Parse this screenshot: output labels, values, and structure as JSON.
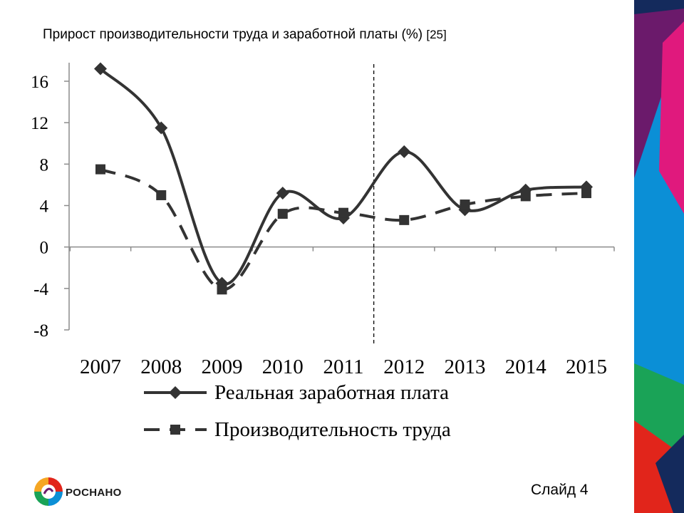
{
  "slide": {
    "title": "Прирост производительности труда и заработной платы (%)",
    "reference": "[25]",
    "slide_number": "Слайд 4",
    "logo_text": "РОСНАНО"
  },
  "colors": {
    "series": "#333333",
    "axis": "#8c8c8c",
    "deco_purple": "#6b1a6b",
    "deco_magenta": "#e0197d",
    "deco_blue": "#0b8fd6",
    "deco_green": "#1aa357",
    "deco_red": "#e1251b",
    "deco_navy": "#142a5c"
  },
  "chart_data": {
    "type": "line",
    "title": "Прирост производительности труда и заработной платы (%)",
    "xlabel": "",
    "ylabel": "",
    "categories": [
      "2007",
      "2008",
      "2009",
      "2010",
      "2011",
      "2012",
      "2013",
      "2014",
      "2015"
    ],
    "y_ticks": [
      "16",
      "12",
      "8",
      "4",
      "0",
      "-4",
      "-8"
    ],
    "ylim": [
      -8,
      18
    ],
    "divider_between": [
      "2011",
      "2012"
    ],
    "grid": false,
    "legend_position": "bottom",
    "series": [
      {
        "name": "Реальная заработная плата",
        "style": "solid",
        "marker": "diamond",
        "values": [
          17.2,
          11.5,
          -3.5,
          5.2,
          2.8,
          9.2,
          3.6,
          5.5,
          5.8
        ]
      },
      {
        "name": "Производительность труда",
        "style": "dashed",
        "marker": "square",
        "values": [
          7.5,
          5.0,
          -4.1,
          3.2,
          3.3,
          2.6,
          4.1,
          4.9,
          5.2
        ]
      }
    ]
  }
}
